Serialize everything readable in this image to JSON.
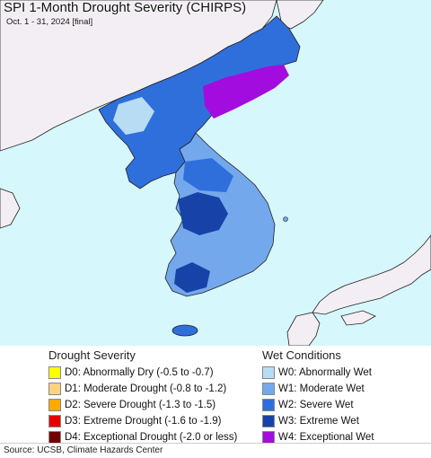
{
  "map": {
    "title": "SPI 1-Month Drought Severity (CHIRPS)",
    "subtitle": "Oct. 1 - 31, 2024 [final]",
    "colors": {
      "ocean": "#d6f7fb",
      "neighbor_land": "#f3eef3",
      "w1": "#74a8ec",
      "w2": "#2f6fdc",
      "w3": "#1743a8",
      "w4": "#a30cdf",
      "w0": "#b8dcf4"
    }
  },
  "legend": {
    "drought": {
      "heading": "Drought Severity",
      "items": [
        {
          "label": "D0: Abnormally Dry (-0.5 to -0.7)",
          "color": "#ffff00"
        },
        {
          "label": "D1: Moderate Drought (-0.8 to -1.2)",
          "color": "#fcd37f"
        },
        {
          "label": "D2: Severe Drought (-1.3 to -1.5)",
          "color": "#ffaa00"
        },
        {
          "label": "D3: Extreme Drought (-1.6 to -1.9)",
          "color": "#e60000"
        },
        {
          "label": "D4: Exceptional Drought (-2.0 or less)",
          "color": "#730000"
        }
      ]
    },
    "wet": {
      "heading": "Wet Conditions",
      "items": [
        {
          "label": "W0: Abnormally Wet",
          "color": "#b8dcf4"
        },
        {
          "label": "W1: Moderate Wet",
          "color": "#74a8ec"
        },
        {
          "label": "W2: Severe Wet",
          "color": "#2f6fdc"
        },
        {
          "label": "W3: Extreme Wet",
          "color": "#1743a8"
        },
        {
          "label": "W4: Exceptional Wet",
          "color": "#a30cdf"
        }
      ]
    }
  },
  "footer": {
    "source": "Source: UCSB, Climate Hazards Center"
  }
}
